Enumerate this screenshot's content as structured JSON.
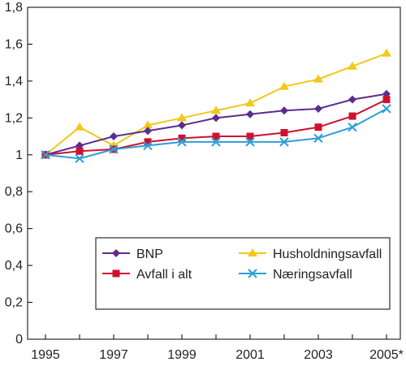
{
  "chart_data": {
    "type": "line",
    "title": "",
    "xlabel": "",
    "ylabel": "",
    "x": [
      "1995",
      "1996",
      "1997",
      "1998",
      "1999",
      "2000",
      "2001",
      "2002",
      "2003",
      "2004",
      "2005*"
    ],
    "x_tick_labels": [
      "1995",
      "1997",
      "1999",
      "2001",
      "2003",
      "2005*"
    ],
    "y_tick_labels": [
      "0",
      "0,2",
      "0,4",
      "0,6",
      "0,8",
      "1",
      "1,2",
      "1,4",
      "1,6",
      "1,8"
    ],
    "ylim": [
      0,
      1.8
    ],
    "grid": false,
    "legend_position": "bottom-right",
    "series": [
      {
        "name": "BNP",
        "color": "#5b2d8e",
        "marker": "diamond",
        "values": [
          1.0,
          1.05,
          1.1,
          1.13,
          1.16,
          1.2,
          1.22,
          1.24,
          1.25,
          1.3,
          1.33
        ]
      },
      {
        "name": "Husholdningsavfall",
        "color": "#f2c819",
        "marker": "triangle",
        "values": [
          1.0,
          1.15,
          1.05,
          1.16,
          1.2,
          1.24,
          1.28,
          1.37,
          1.41,
          1.48,
          1.55
        ]
      },
      {
        "name": "Avfall i alt",
        "color": "#d0102f",
        "marker": "square",
        "values": [
          1.0,
          1.02,
          1.03,
          1.07,
          1.09,
          1.1,
          1.1,
          1.12,
          1.15,
          1.21,
          1.3
        ]
      },
      {
        "name": "Næringsavfall",
        "color": "#2a9fd8",
        "marker": "x",
        "values": [
          1.0,
          0.98,
          1.03,
          1.05,
          1.07,
          1.07,
          1.07,
          1.07,
          1.09,
          1.15,
          1.25
        ]
      }
    ]
  }
}
